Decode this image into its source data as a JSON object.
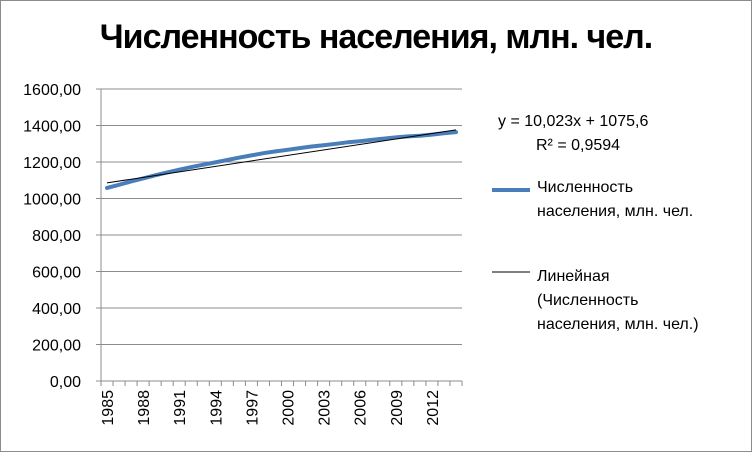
{
  "chart_data": {
    "type": "line",
    "title": "Численность населения,  млн. чел.",
    "xlabel": "",
    "ylabel": "",
    "ylim": [
      0,
      1600
    ],
    "y_ticks": [
      "0,00",
      "200,00",
      "400,00",
      "600,00",
      "800,00",
      "1000,00",
      "1200,00",
      "1400,00",
      "1600,00"
    ],
    "x_tick_labels": [
      "1985",
      "1988",
      "1991",
      "1994",
      "1997",
      "2000",
      "2003",
      "2006",
      "2009",
      "2012"
    ],
    "x": [
      1985,
      1986,
      1987,
      1988,
      1989,
      1990,
      1991,
      1992,
      1993,
      1994,
      1995,
      1996,
      1997,
      1998,
      1999,
      2000,
      2001,
      2002,
      2003,
      2004,
      2005,
      2006,
      2007,
      2008,
      2009,
      2010,
      2011,
      2012,
      2013,
      2014
    ],
    "series": [
      {
        "name": "Численность населения,  млн. чел.",
        "color": "#4a7ebb",
        "values": [
          1058,
          1075,
          1093,
          1110,
          1127,
          1143,
          1158,
          1172,
          1185,
          1198,
          1211,
          1224,
          1236,
          1248,
          1258,
          1267,
          1276,
          1285,
          1292,
          1300,
          1308,
          1314,
          1321,
          1328,
          1335,
          1340,
          1344,
          1350,
          1357,
          1364
        ]
      }
    ],
    "trendline": {
      "name": "Линейная (Численность населения,  млн. чел.)",
      "color": "#000000",
      "slope": 10.023,
      "intercept": 1075.6,
      "equation": "y = 10,023x + 1075,6",
      "r_squared": "R² = 0,9594"
    },
    "grid": "horizontal",
    "legend_position": "right"
  },
  "legend": {
    "series_label_line1": "Численность",
    "series_label_line2": "населения,  млн. чел.",
    "trend_label_line1": "Линейная",
    "trend_label_line2": "(Численность",
    "trend_label_line3": "населения,  млн. чел.)"
  }
}
